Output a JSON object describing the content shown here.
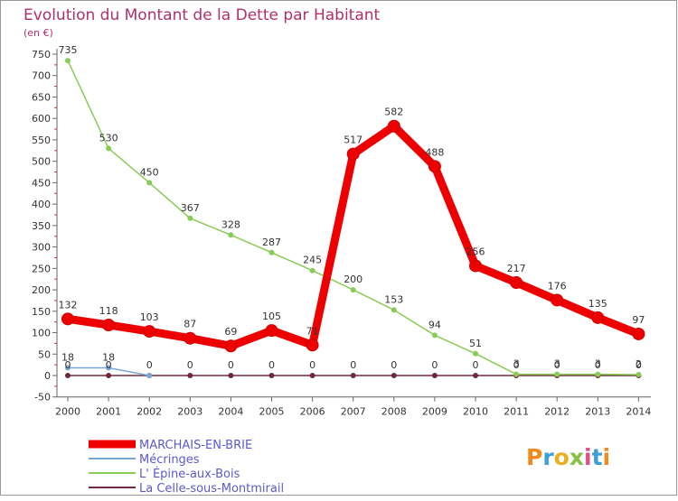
{
  "chart_data": {
    "type": "line",
    "title": "Evolution du Montant de la Dette par Habitant",
    "subtitle": "(en €)",
    "xlabel": "",
    "ylabel": "",
    "ylim": [
      -50,
      750
    ],
    "yticks": [
      -50,
      0,
      50,
      100,
      150,
      200,
      250,
      300,
      350,
      400,
      450,
      500,
      550,
      600,
      650,
      700,
      750
    ],
    "ytick_labels": [
      "-50",
      "0",
      "50",
      "100",
      "150",
      "200",
      "250",
      "300",
      "350",
      "400",
      "450",
      "500",
      "550",
      "600",
      "650",
      "700",
      "750"
    ],
    "categories": [
      "2000",
      "2001",
      "2002",
      "2003",
      "2004",
      "2005",
      "2006",
      "2007",
      "2008",
      "2009",
      "2010",
      "2011",
      "2012",
      "2013",
      "2014"
    ],
    "grid": false,
    "legend_position": "bottom-left",
    "series": [
      {
        "name": "MARCHAIS-EN-BRIE",
        "color": "#ee0000",
        "style": "thick",
        "values": [
          132,
          118,
          103,
          87,
          69,
          105,
          71,
          517,
          582,
          488,
          256,
          217,
          176,
          135,
          97
        ],
        "labels": [
          "132",
          "118",
          "103",
          "87",
          "69",
          "105",
          "71",
          "517",
          "582",
          "488",
          "256",
          "217",
          "176",
          "135",
          "97"
        ]
      },
      {
        "name": "Mécringes",
        "color": "#7aa6d6",
        "style": "thin",
        "values": [
          18,
          18,
          0,
          null,
          null,
          null,
          null,
          null,
          null,
          null,
          null,
          null,
          null,
          null,
          null
        ],
        "labels": [
          "18",
          "18",
          "",
          "",
          "",
          "",
          "",
          "",
          "",
          "",
          "",
          "",
          "",
          "",
          ""
        ]
      },
      {
        "name": "L' Épine-aux-Bois",
        "color": "#88cc55",
        "style": "thin",
        "values": [
          735,
          530,
          450,
          367,
          328,
          287,
          245,
          200,
          153,
          94,
          51,
          3,
          3,
          3,
          2
        ],
        "labels": [
          "735",
          "530",
          "450",
          "367",
          "328",
          "287",
          "245",
          "200",
          "153",
          "94",
          "51",
          "3",
          "3",
          "3",
          "2"
        ]
      },
      {
        "name": "La Celle-sous-Montmirail",
        "color": "#6e2a3a",
        "style": "thin",
        "values": [
          0,
          0,
          0,
          0,
          0,
          0,
          0,
          0,
          0,
          0,
          0,
          0,
          0,
          0,
          0
        ],
        "labels": [
          "0",
          "0",
          "0",
          "0",
          "0",
          "0",
          "0",
          "0",
          "0",
          "0",
          "0",
          "0",
          "0",
          "0",
          "0"
        ]
      }
    ]
  },
  "logo": {
    "text": "Proxiti",
    "colors": [
      "#f08a1a",
      "#3aa0d8",
      "#e8b020",
      "#88c040",
      "#e05080",
      "#3aa0d8",
      "#f08a1a"
    ]
  }
}
